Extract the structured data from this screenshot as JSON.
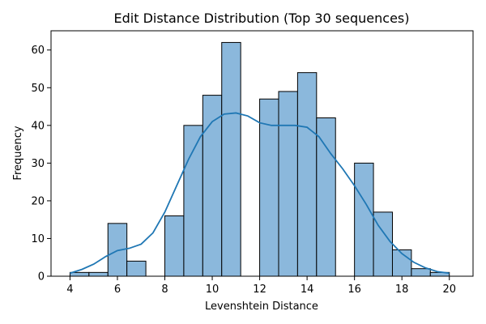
{
  "chart_data": {
    "type": "bar",
    "title": "Edit Distance Distribution (Top 30 sequences)",
    "xlabel": "Levenshtein Distance",
    "ylabel": "Frequency",
    "xlim": [
      3.2,
      21.0
    ],
    "ylim": [
      0,
      65.1
    ],
    "x_ticks": [
      4,
      6,
      8,
      10,
      12,
      14,
      16,
      18,
      20
    ],
    "y_ticks": [
      0,
      10,
      20,
      30,
      40,
      50,
      60
    ],
    "grid": false,
    "legend": "none",
    "bar_color": "#8bb8dc",
    "line_color": "#1f77b4",
    "bins": [
      {
        "x0": 4.0,
        "x1": 4.8,
        "value": 1
      },
      {
        "x0": 4.8,
        "x1": 5.6,
        "value": 1
      },
      {
        "x0": 5.6,
        "x1": 6.4,
        "value": 14
      },
      {
        "x0": 6.4,
        "x1": 7.2,
        "value": 4
      },
      {
        "x0": 7.2,
        "x1": 8.0,
        "value": 0
      },
      {
        "x0": 8.0,
        "x1": 8.8,
        "value": 16
      },
      {
        "x0": 8.8,
        "x1": 9.6,
        "value": 40
      },
      {
        "x0": 9.6,
        "x1": 10.4,
        "value": 48
      },
      {
        "x0": 10.4,
        "x1": 11.2,
        "value": 62
      },
      {
        "x0": 11.2,
        "x1": 12.0,
        "value": 0
      },
      {
        "x0": 12.0,
        "x1": 12.8,
        "value": 47
      },
      {
        "x0": 12.8,
        "x1": 13.6,
        "value": 49
      },
      {
        "x0": 13.6,
        "x1": 14.4,
        "value": 54
      },
      {
        "x0": 14.4,
        "x1": 15.2,
        "value": 42
      },
      {
        "x0": 15.2,
        "x1": 16.0,
        "value": 0
      },
      {
        "x0": 16.0,
        "x1": 16.8,
        "value": 30
      },
      {
        "x0": 16.8,
        "x1": 17.6,
        "value": 17
      },
      {
        "x0": 17.6,
        "x1": 18.4,
        "value": 7
      },
      {
        "x0": 18.4,
        "x1": 19.2,
        "value": 2
      },
      {
        "x0": 19.2,
        "x1": 20.0,
        "value": 1
      }
    ],
    "kde": {
      "x": [
        4.0,
        4.5,
        5.0,
        5.5,
        6.0,
        6.5,
        7.0,
        7.5,
        8.0,
        8.5,
        9.0,
        9.5,
        10.0,
        10.5,
        11.0,
        11.5,
        12.0,
        12.5,
        13.0,
        13.5,
        14.0,
        14.5,
        15.0,
        15.5,
        16.0,
        16.5,
        17.0,
        17.5,
        18.0,
        18.5,
        19.0,
        19.5,
        20.0
      ],
      "y": [
        0.8,
        1.8,
        3.2,
        5.2,
        6.8,
        7.4,
        8.5,
        11.5,
        17.0,
        24.0,
        31.0,
        37.0,
        41.0,
        43.0,
        43.3,
        42.5,
        40.7,
        40.0,
        40.0,
        40.0,
        39.5,
        37.0,
        32.5,
        28.5,
        24.0,
        19.0,
        13.5,
        9.2,
        6.0,
        3.7,
        2.2,
        1.2,
        0.8
      ]
    }
  }
}
